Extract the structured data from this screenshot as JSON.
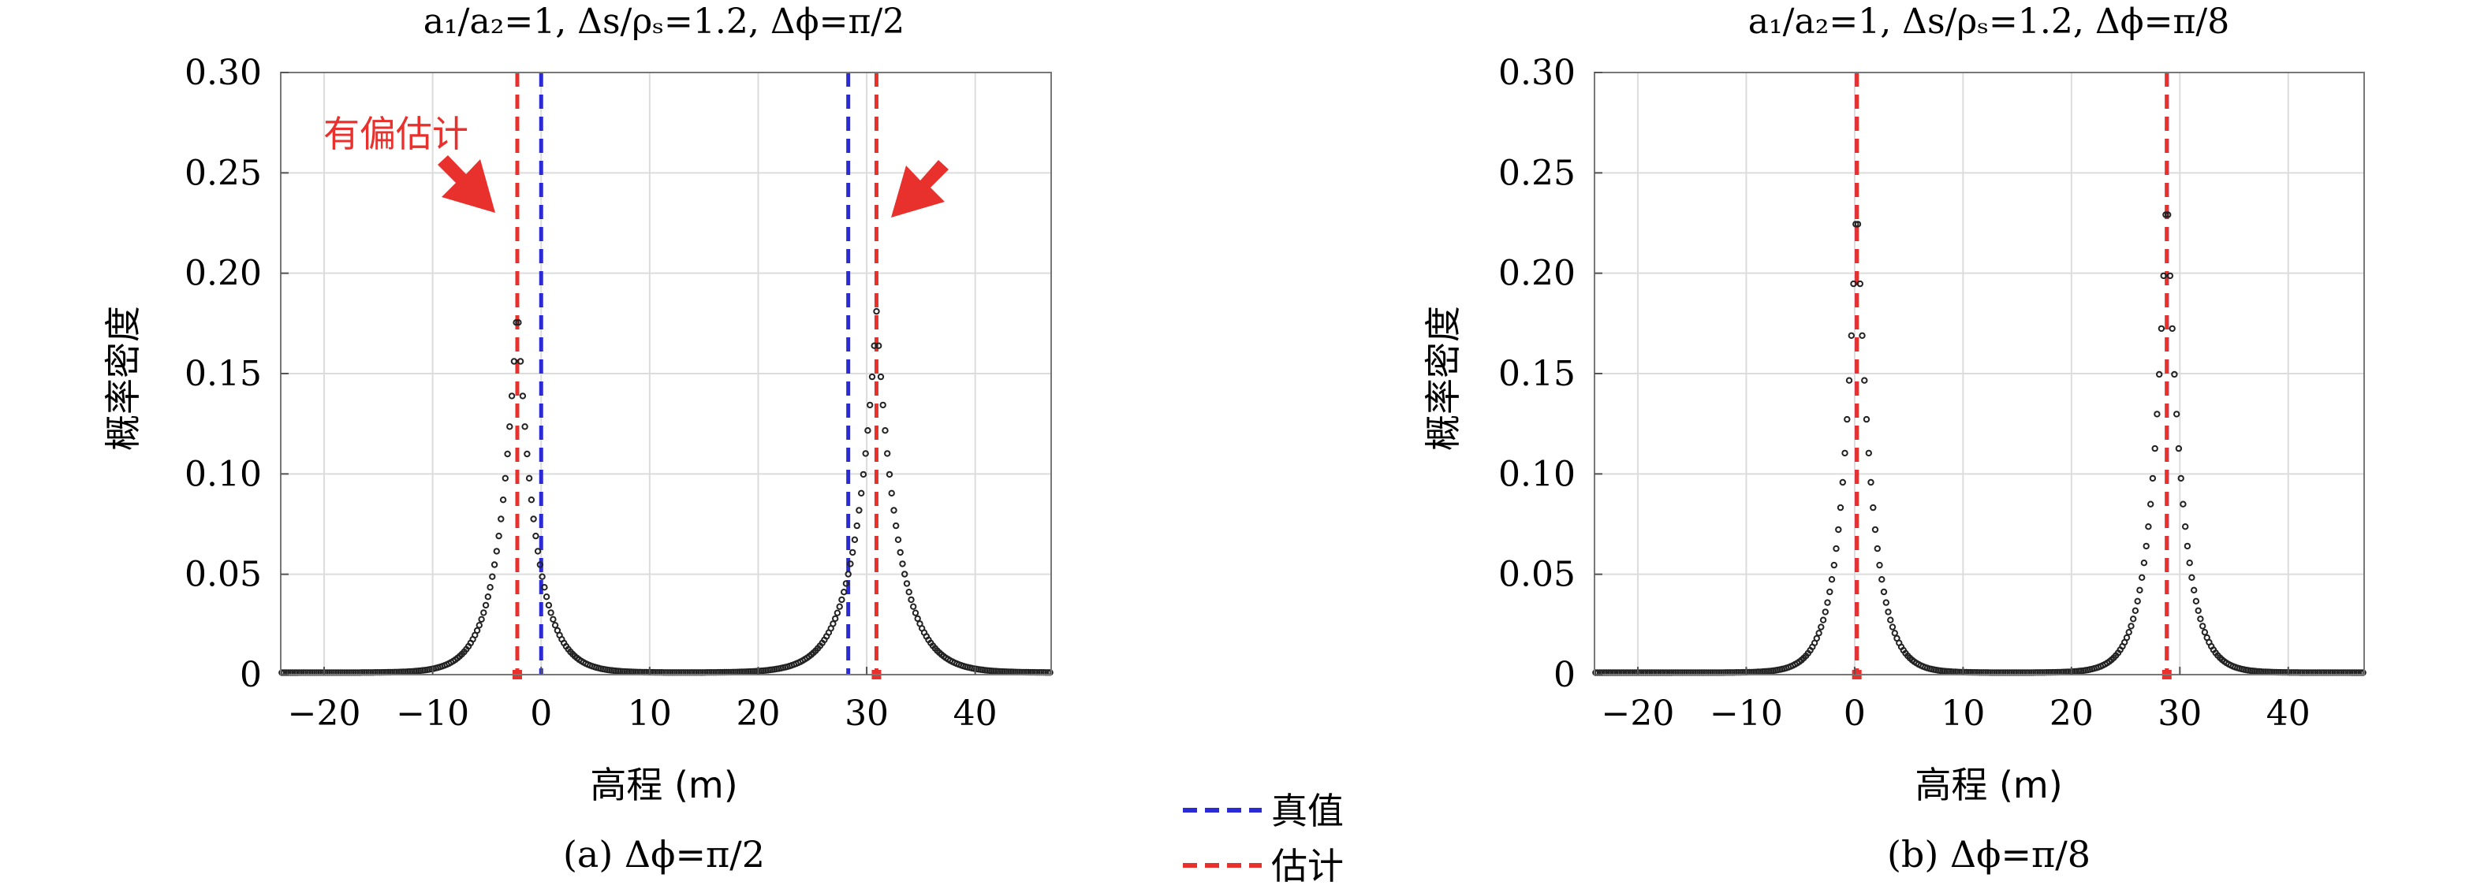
{
  "colors": {
    "true_line": "#2b2bd6",
    "est_line": "#e8302d",
    "points": "#222222",
    "grid": "#dcdcdc",
    "annotation": "#e8302d"
  },
  "legend": {
    "items": [
      {
        "label": "真值",
        "color": "#2b2bd6"
      },
      {
        "label": "估计",
        "color": "#e8302d"
      }
    ]
  },
  "chart_data": [
    {
      "type": "scatter",
      "title": "a₁/a₂=1, Δs/ρₛ=1.2, Δϕ=π/2",
      "caption": "(a) Δϕ=π/2",
      "xlabel": "高程 (m)",
      "ylabel": "概率密度",
      "xlim": [
        -24,
        47
      ],
      "ylim": [
        0,
        0.3
      ],
      "xticks": [
        -20,
        -10,
        0,
        10,
        20,
        30,
        40
      ],
      "xtick_labels": [
        "−20",
        "−10",
        "0",
        "10",
        "20",
        "30",
        "40"
      ],
      "yticks": [
        0,
        0.05,
        0.1,
        0.15,
        0.2,
        0.25,
        0.3
      ],
      "ytick_labels": [
        "0",
        "0.05",
        "0.10",
        "0.15",
        "0.20",
        "0.25",
        "0.30"
      ],
      "grid": true,
      "true_values": [
        0,
        28.3
      ],
      "estimated_values": [
        -2.2,
        30.9
      ],
      "peaks": [
        {
          "center": -2.2,
          "height": 0.185,
          "width": 1.7
        },
        {
          "center": 30.9,
          "height": 0.18,
          "width": 2.0
        }
      ],
      "baseline": 0.001,
      "annotation": "有偏估计"
    },
    {
      "type": "scatter",
      "title": "a₁/a₂=1, Δs/ρₛ=1.2, Δϕ=π/8",
      "caption": "(b) Δϕ=π/8",
      "xlabel": "高程 (m)",
      "ylabel": "概率密度",
      "xlim": [
        -24,
        47
      ],
      "ylim": [
        0,
        0.3
      ],
      "xticks": [
        -20,
        -10,
        0,
        10,
        20,
        30,
        40
      ],
      "xtick_labels": [
        "−20",
        "−10",
        "0",
        "10",
        "20",
        "30",
        "40"
      ],
      "yticks": [
        0,
        0.05,
        0.1,
        0.15,
        0.2,
        0.25,
        0.3
      ],
      "ytick_labels": [
        "0",
        "0.05",
        "0.10",
        "0.15",
        "0.20",
        "0.25",
        "0.30"
      ],
      "grid": true,
      "true_values": [
        0.2,
        28.8
      ],
      "estimated_values": [
        0.2,
        28.8
      ],
      "peaks": [
        {
          "center": 0.2,
          "height": 0.24,
          "width": 1.4
        },
        {
          "center": 28.8,
          "height": 0.245,
          "width": 1.4
        }
      ],
      "baseline": 0.001,
      "annotation": ""
    }
  ]
}
